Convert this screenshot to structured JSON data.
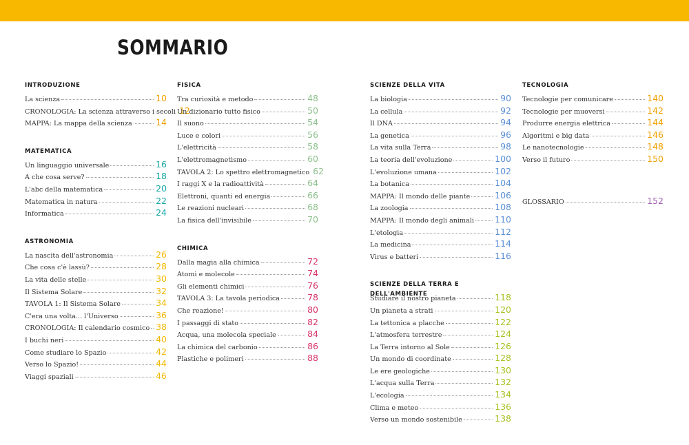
{
  "title": "SOMMARIO",
  "colors": {
    "topbar": "#f8b800",
    "orange": "#f0a000",
    "teal": "#1aa6a6",
    "yellow": "#f2b800",
    "green": "#8cc08c",
    "red": "#d6336c",
    "blue": "#5b8fd6",
    "lime": "#a8c020",
    "purple": "#a064b4"
  },
  "columns": [
    {
      "sections": [
        {
          "title": "INTRODUZIONE",
          "color": "#f0a000",
          "entries": [
            {
              "label": "La scienza",
              "page": "10"
            },
            {
              "label": "CRONOLOGIA: La scienza attraverso i secoli",
              "page": "12"
            },
            {
              "label": "MAPPA: La mappa della scienza",
              "page": "14"
            }
          ]
        },
        {
          "title": "MATEMATICA",
          "color": "#1aa6a6",
          "entries": [
            {
              "label": "Un linguaggio universale",
              "page": "16"
            },
            {
              "label": "A che cosa serve?",
              "page": "18"
            },
            {
              "label": "L'abc della matematica",
              "page": "20"
            },
            {
              "label": "Matematica in natura",
              "page": "22"
            },
            {
              "label": "Informatica",
              "page": "24"
            }
          ]
        },
        {
          "title": "ASTRONOMIA",
          "color": "#f2b800",
          "entries": [
            {
              "label": "La nascita dell'astronomia",
              "page": "26"
            },
            {
              "label": "Che cosa c'è lassù?",
              "page": "28"
            },
            {
              "label": "La vita delle stelle",
              "page": "30"
            },
            {
              "label": "Il Sistema Solare",
              "page": "32"
            },
            {
              "label": "TAVOLA 1: Il Sistema Solare",
              "page": "34"
            },
            {
              "label": "C'era una volta... l'Universo",
              "page": "36"
            },
            {
              "label": "CRONOLOGIA: Il calendario cosmico",
              "page": "38"
            },
            {
              "label": "I buchi neri",
              "page": "40"
            },
            {
              "label": "Come studiare lo Spazio",
              "page": "42"
            },
            {
              "label": "Verso lo Spazio!",
              "page": "44"
            },
            {
              "label": "Viaggi spaziali",
              "page": "46"
            }
          ]
        }
      ]
    },
    {
      "sections": [
        {
          "title": "FISICA",
          "color": "#8cc08c",
          "entries": [
            {
              "label": "Tra curiosità e metodo",
              "page": "48"
            },
            {
              "label": "Un dizionario tutto fisico",
              "page": "50"
            },
            {
              "label": "Il suono",
              "page": "54"
            },
            {
              "label": "Luce e colori",
              "page": "56"
            },
            {
              "label": "L'elettricità",
              "page": "58"
            },
            {
              "label": "L'elettromagnetismo",
              "page": "60"
            },
            {
              "label": "TAVOLA 2: Lo spettro elettromagnetico",
              "page": "62"
            },
            {
              "label": "I raggi X e la radioattività",
              "page": "64"
            },
            {
              "label": "Elettroni, quanti ed energia",
              "page": "66"
            },
            {
              "label": "Le reazioni nucleari",
              "page": "68"
            },
            {
              "label": "La fisica dell'invisibile",
              "page": "70"
            }
          ]
        },
        {
          "title": "CHIMICA",
          "color": "#d6336c",
          "entries": [
            {
              "label": "Dalla magia alla chimica",
              "page": "72"
            },
            {
              "label": "Atomi e molecole",
              "page": "74"
            },
            {
              "label": "Gli elementi chimici",
              "page": "76"
            },
            {
              "label": "TAVOLA 3: La tavola periodica",
              "page": "78"
            },
            {
              "label": "Che reazione!",
              "page": "80"
            },
            {
              "label": "I passaggi di stato",
              "page": "82"
            },
            {
              "label": "Acqua, una molecola speciale",
              "page": "84"
            },
            {
              "label": "La chimica del carbonio",
              "page": "86"
            },
            {
              "label": "Plastiche e polimeri",
              "page": "88"
            }
          ]
        }
      ]
    },
    {
      "sections": [
        {
          "title": "SCIENZE DELLA VITA",
          "color": "#5b8fd6",
          "entries": [
            {
              "label": "La biologia",
              "page": "90"
            },
            {
              "label": "La cellula",
              "page": "92"
            },
            {
              "label": "Il DNA",
              "page": "94"
            },
            {
              "label": "La genetica",
              "page": "96"
            },
            {
              "label": "La vita sulla Terra",
              "page": "98"
            },
            {
              "label": "La teoria dell'evoluzione",
              "page": "100"
            },
            {
              "label": "L'evoluzione umana",
              "page": "102"
            },
            {
              "label": "La botanica",
              "page": "104"
            },
            {
              "label": "MAPPA: Il mondo delle piante",
              "page": "106"
            },
            {
              "label": "La zoologia",
              "page": "108"
            },
            {
              "label": "MAPPA: Il mondo degli animali",
              "page": "110"
            },
            {
              "label": "L'etologia",
              "page": "112"
            },
            {
              "label": "La medicina",
              "page": "114"
            },
            {
              "label": "Virus e batteri",
              "page": "116"
            }
          ]
        },
        {
          "title": "SCIENZE DELLA TERRA E DELL'AMBIENTE",
          "color": "#a8c020",
          "entries": [
            {
              "label": "Studiare il nostro pianeta",
              "page": "118"
            },
            {
              "label": "Un pianeta a strati",
              "page": "120"
            },
            {
              "label": "La tettonica a placche",
              "page": "122"
            },
            {
              "label": "L'atmosfera terrestre",
              "page": "124"
            },
            {
              "label": "La Terra intorno al Sole",
              "page": "126"
            },
            {
              "label": "Un mondo di coordinate",
              "page": "128"
            },
            {
              "label": "Le ere geologiche",
              "page": "130"
            },
            {
              "label": "L'acqua sulla Terra",
              "page": "132"
            },
            {
              "label": "L'ecologia",
              "page": "134"
            },
            {
              "label": "Clima e meteo",
              "page": "136"
            },
            {
              "label": "Verso un mondo sostenibile",
              "page": "138"
            }
          ]
        }
      ]
    },
    {
      "sections": [
        {
          "title": "TECNOLOGIA",
          "color": "#f0a000",
          "entries": [
            {
              "label": "Tecnologie per comunicare",
              "page": "140"
            },
            {
              "label": "Tecnologie per muoversi",
              "page": "142"
            },
            {
              "label": "Produrre energia elettrica",
              "page": "144"
            },
            {
              "label": "Algoritmi e big data",
              "page": "146"
            },
            {
              "label": "Le nanotecnologie",
              "page": "148"
            },
            {
              "label": "Verso il futuro",
              "page": "150"
            }
          ]
        },
        {
          "title": "",
          "color": "#a064b4",
          "entries": [
            {
              "label": "GLOSSARIO",
              "page": "152"
            }
          ]
        }
      ]
    }
  ]
}
